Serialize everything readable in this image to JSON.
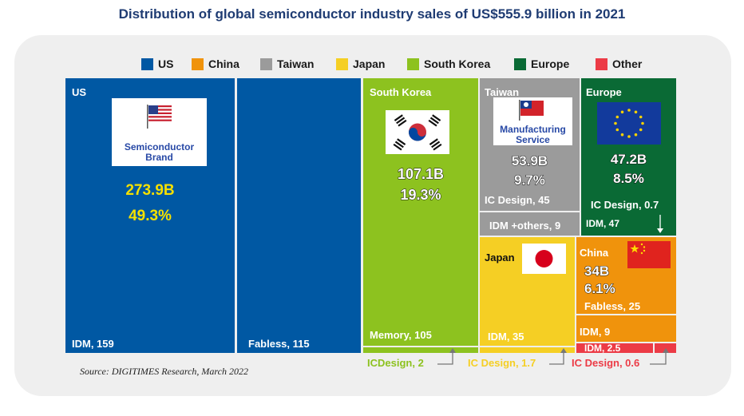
{
  "chart_data": {
    "type": "treemap",
    "title": "Distribution of global semiconductor industry sales of US$555.9 billion in 2021",
    "source": "Source: DIGITIMES Research, March 2022",
    "legend": [
      {
        "name": "US",
        "color": "#0058a3"
      },
      {
        "name": "China",
        "color": "#f0930c"
      },
      {
        "name": "Taiwan",
        "color": "#9b9b9b"
      },
      {
        "name": "Japan",
        "color": "#f5cf24"
      },
      {
        "name": "South Korea",
        "color": "#8dc21f"
      },
      {
        "name": "Europe",
        "color": "#0a6a35"
      },
      {
        "name": "Other",
        "color": "#ec3b46"
      }
    ],
    "regions": {
      "us": {
        "name": "US",
        "total": "273.9B",
        "share": "49.3%",
        "card_text": "Semiconductor Brand",
        "segments": [
          {
            "label": "IDM, 159",
            "value": 159
          },
          {
            "label": "Fabless, 115",
            "value": 115
          }
        ]
      },
      "south_korea": {
        "name": "South Korea",
        "total": "107.1B",
        "share": "19.3%",
        "segments": [
          {
            "label": "Memory, 105",
            "value": 105
          },
          {
            "label": "ICDesign, 2",
            "value": 2
          }
        ]
      },
      "taiwan": {
        "name": "Taiwan",
        "total": "53.9B",
        "share": "9.7%",
        "card_text": "Manufacturing Service",
        "segments": [
          {
            "label": "IC Design, 45",
            "value": 45
          },
          {
            "label": "IDM +others, 9",
            "value": 9
          }
        ]
      },
      "europe": {
        "name": "Europe",
        "total": "47.2B",
        "share": "8.5%",
        "segments": [
          {
            "label": "IC Design, 0.7",
            "value": 0.7
          },
          {
            "label": "IDM, 47",
            "value": 47
          }
        ]
      },
      "japan": {
        "name": "Japan",
        "segments": [
          {
            "label": "IDM, 35",
            "value": 35
          },
          {
            "label": "IC Design, 1.7",
            "value": 1.7
          }
        ]
      },
      "china": {
        "name": "China",
        "total": "34B",
        "share": "6.1%",
        "segments": [
          {
            "label": "Fabless, 25",
            "value": 25
          },
          {
            "label": "IDM, 9",
            "value": 9
          }
        ]
      },
      "other": {
        "name": "Other",
        "segments": [
          {
            "label": "IDM, 2.5",
            "value": 2.5
          },
          {
            "label": "IC Design, 0.6",
            "value": 0.6
          }
        ]
      }
    }
  }
}
